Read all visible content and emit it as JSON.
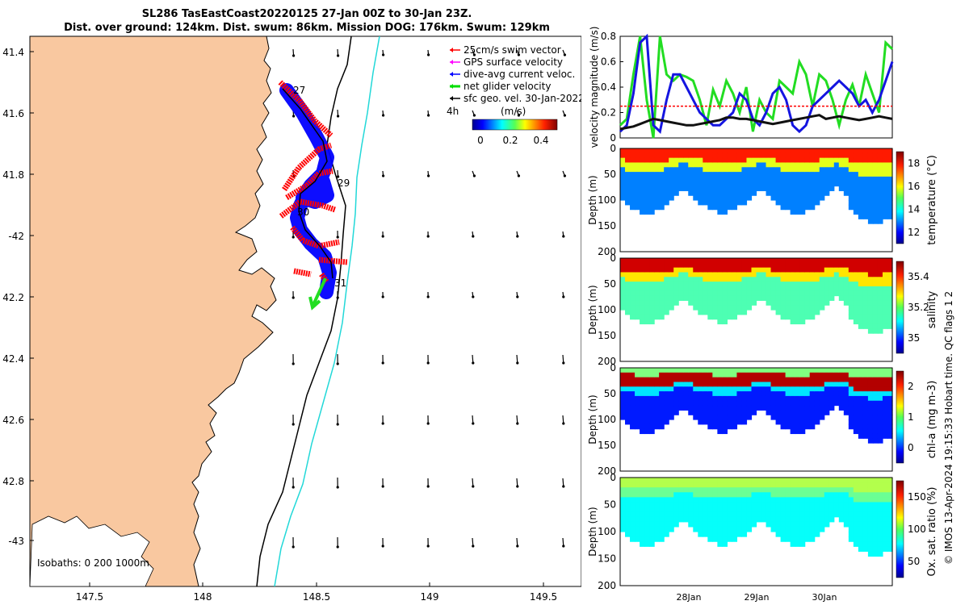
{
  "title": {
    "line1": "SL286 TasEastCoast20220125 27-Jan 00Z to 30-Jan 23Z.",
    "line2": "Dist. over ground: 124km. Dist. swum: 86km. Mission DOG: 176km. Swum: 129km"
  },
  "credit": "© IMOS 13-Apr-2024 19:15:33 Hobart time. QC flags 1  2",
  "map": {
    "lat_ticks": [
      "41.4",
      "41.6",
      "41.8",
      "-42",
      "42.2",
      "42.4",
      "42.6",
      "42.8",
      "-43"
    ],
    "lon_ticks": [
      "147.5",
      "148",
      "148.5",
      "149",
      "149.5"
    ],
    "isobaths_label": "Isobaths: 0   200  1000m",
    "legend": [
      {
        "label": "25cm/s swim vector",
        "color": "#ff0000"
      },
      {
        "label": "GPS surface velocity",
        "color": "#ff00ff"
      },
      {
        "label": "dive-avg current veloc.",
        "color": "#0000ff"
      },
      {
        "label": "net glider velocity",
        "color": "#00dd00"
      },
      {
        "label": "sfc geo. vel. 30-Jan-2022",
        "color": "#000000"
      }
    ],
    "colorbar": {
      "label": "(m/s)",
      "left_label": "4h",
      "ticks": [
        "0",
        "0.2",
        "0.4"
      ]
    },
    "day_labels": [
      "27",
      "29",
      "30",
      "31"
    ],
    "colors": {
      "land": "#f9c8a0",
      "shelf": "#22d8d8",
      "glider_track": "#0000ff",
      "swim": "#ff0000"
    }
  },
  "chart_data": [
    {
      "type": "line",
      "ylabel": "velocity magnitude (m/s)",
      "ylim": [
        0,
        0.8
      ],
      "yticks": [
        "0",
        "0.2",
        "0.4",
        "0.6",
        "0.8"
      ],
      "x_ticks": [
        "28Jan",
        "29Jan",
        "30Jan"
      ],
      "series": [
        {
          "name": "net glider velocity",
          "color": "#22dd22",
          "values": [
            0.1,
            0.15,
            0.5,
            0.8,
            0.3,
            0,
            0.8,
            0.5,
            0.45,
            0.5,
            0.48,
            0.45,
            0.3,
            0.1,
            0.38,
            0.25,
            0.45,
            0.35,
            0.2,
            0.4,
            0.05,
            0.3,
            0.2,
            0.15,
            0.45,
            0.4,
            0.35,
            0.6,
            0.5,
            0.25,
            0.5,
            0.45,
            0.3,
            0.1,
            0.3,
            0.42,
            0.25,
            0.5,
            0.35,
            0.2,
            0.75,
            0.7
          ]
        },
        {
          "name": "dive-avg current veloc.",
          "color": "#1515e0",
          "values": [
            0.05,
            0.1,
            0.35,
            0.75,
            0.8,
            0.1,
            0.05,
            0.3,
            0.5,
            0.5,
            0.4,
            0.3,
            0.2,
            0.15,
            0.1,
            0.1,
            0.15,
            0.2,
            0.35,
            0.3,
            0.15,
            0.1,
            0.2,
            0.35,
            0.4,
            0.3,
            0.1,
            0.05,
            0.1,
            0.25,
            0.3,
            0.35,
            0.4,
            0.45,
            0.4,
            0.35,
            0.25,
            0.3,
            0.2,
            0.3,
            0.45,
            0.6
          ]
        },
        {
          "name": "sfc geo. vel.",
          "color": "#111111",
          "values": [
            0.07,
            0.08,
            0.09,
            0.11,
            0.13,
            0.15,
            0.14,
            0.13,
            0.12,
            0.11,
            0.1,
            0.1,
            0.11,
            0.12,
            0.13,
            0.14,
            0.16,
            0.16,
            0.15,
            0.15,
            0.14,
            0.13,
            0.12,
            0.11,
            0.12,
            0.13,
            0.14,
            0.15,
            0.16,
            0.17,
            0.18,
            0.15,
            0.16,
            0.17,
            0.16,
            0.15,
            0.14,
            0.15,
            0.16,
            0.17,
            0.16,
            0.15
          ]
        },
        {
          "name": "25cm/s swim",
          "color": "#ff0000",
          "values": [
            0.25,
            0.25,
            0.25,
            0.25,
            0.25,
            0.25,
            0.25,
            0.25,
            0.25,
            0.25,
            0.25,
            0.25,
            0.25,
            0.25,
            0.25,
            0.25,
            0.25,
            0.25,
            0.25,
            0.25,
            0.25,
            0.25,
            0.25,
            0.25,
            0.25,
            0.25,
            0.25,
            0.25,
            0.25,
            0.25,
            0.25,
            0.25,
            0.25,
            0.25,
            0.25,
            0.25,
            0.25,
            0.25,
            0.25,
            0.25,
            0.25,
            0.25
          ]
        }
      ]
    },
    {
      "type": "heatmap",
      "ylabel": "Depth (m)",
      "clabel": "temperature (°C)",
      "yticks": [
        "0",
        "50",
        "100",
        "150",
        "200"
      ],
      "cticks": [
        "12",
        "14",
        "16",
        "18"
      ],
      "colormap": "jet"
    },
    {
      "type": "heatmap",
      "ylabel": "Depth (m)",
      "clabel": "salinity",
      "yticks": [
        "0",
        "50",
        "100",
        "150",
        "200"
      ],
      "cticks": [
        "35",
        "35.2",
        "35.4"
      ],
      "colormap": "jet"
    },
    {
      "type": "heatmap",
      "ylabel": "Depth (m)",
      "clabel": "chl-a (mg m-3)",
      "yticks": [
        "0",
        "50",
        "100",
        "150",
        "200"
      ],
      "cticks": [
        "0",
        "1",
        "2"
      ],
      "colormap": "jet"
    },
    {
      "type": "heatmap",
      "ylabel": "Depth (m)",
      "clabel": "Ox. sat. ratio (%)",
      "yticks": [
        "0",
        "50",
        "100",
        "150",
        "200"
      ],
      "cticks": [
        "50",
        "100",
        "150"
      ],
      "colormap": "jet"
    }
  ]
}
